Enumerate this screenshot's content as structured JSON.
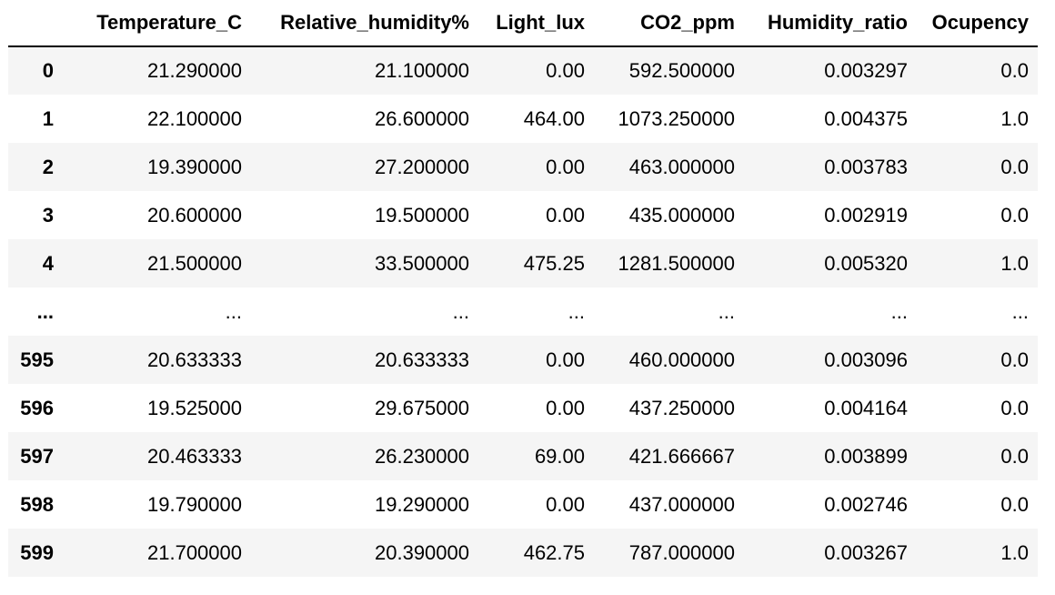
{
  "table": {
    "index_header": "",
    "columns": [
      "Temperature_C",
      "Relative_humidity%",
      "Light_lux",
      "CO2_ppm",
      "Humidity_ratio",
      "Ocupency"
    ],
    "rows": [
      {
        "index": "0",
        "cells": [
          "21.290000",
          "21.100000",
          "0.00",
          "592.500000",
          "0.003297",
          "0.0"
        ]
      },
      {
        "index": "1",
        "cells": [
          "22.100000",
          "26.600000",
          "464.00",
          "1073.250000",
          "0.004375",
          "1.0"
        ]
      },
      {
        "index": "2",
        "cells": [
          "19.390000",
          "27.200000",
          "0.00",
          "463.000000",
          "0.003783",
          "0.0"
        ]
      },
      {
        "index": "3",
        "cells": [
          "20.600000",
          "19.500000",
          "0.00",
          "435.000000",
          "0.002919",
          "0.0"
        ]
      },
      {
        "index": "4",
        "cells": [
          "21.500000",
          "33.500000",
          "475.25",
          "1281.500000",
          "0.005320",
          "1.0"
        ]
      },
      {
        "index": "...",
        "cells": [
          "...",
          "...",
          "...",
          "...",
          "...",
          "..."
        ]
      },
      {
        "index": "595",
        "cells": [
          "20.633333",
          "20.633333",
          "0.00",
          "460.000000",
          "0.003096",
          "0.0"
        ]
      },
      {
        "index": "596",
        "cells": [
          "19.525000",
          "29.675000",
          "0.00",
          "437.250000",
          "0.004164",
          "0.0"
        ]
      },
      {
        "index": "597",
        "cells": [
          "20.463333",
          "26.230000",
          "69.00",
          "421.666667",
          "0.003899",
          "0.0"
        ]
      },
      {
        "index": "598",
        "cells": [
          "19.790000",
          "19.290000",
          "0.00",
          "437.000000",
          "0.002746",
          "0.0"
        ]
      },
      {
        "index": "599",
        "cells": [
          "21.700000",
          "20.390000",
          "462.75",
          "787.000000",
          "0.003267",
          "1.0"
        ]
      }
    ]
  }
}
